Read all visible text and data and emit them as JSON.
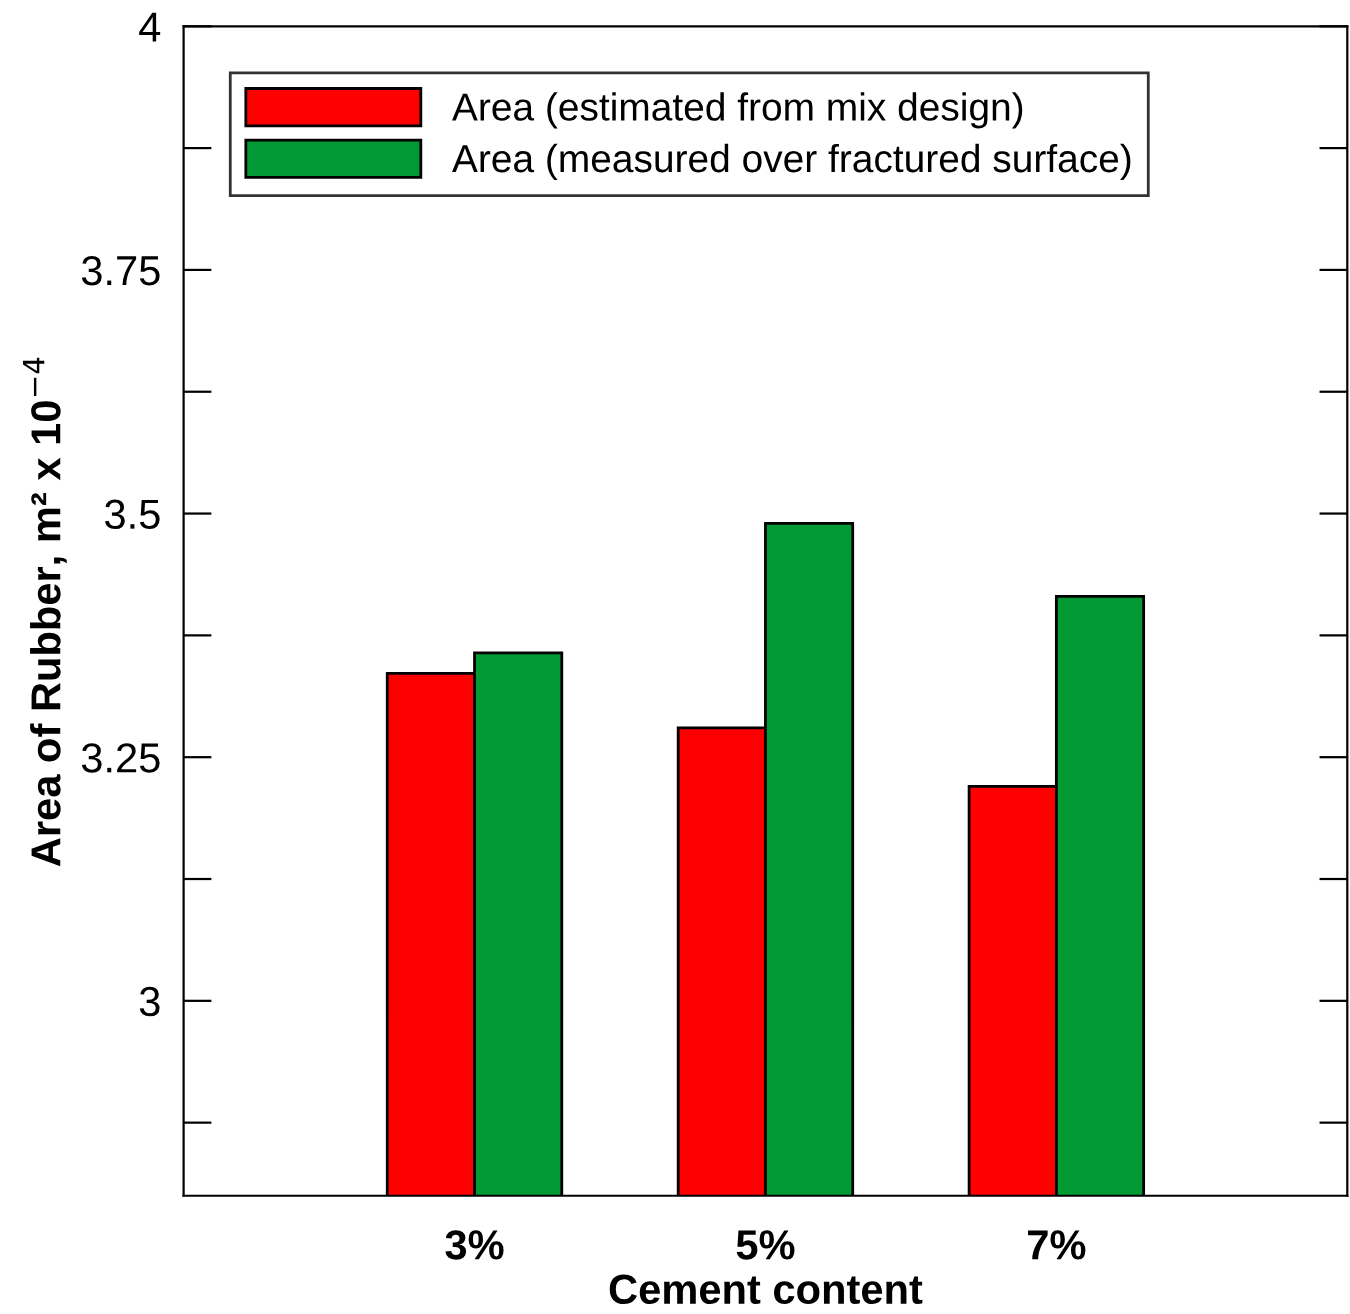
{
  "chart_data": {
    "type": "bar",
    "xlabel": "Cement content",
    "ylabel": "Area of Rubber, m² x 10$^{−4}$",
    "categories": [
      "3%",
      "5%",
      "7%"
    ],
    "series": [
      {
        "name": "Area (estimated from mix design)",
        "color": "#ff0000",
        "values": [
          3.336,
          3.28,
          3.22
        ]
      },
      {
        "name": "Area (measured over fractured surface)",
        "color": "#009933",
        "values": [
          3.357,
          3.49,
          3.415
        ]
      }
    ],
    "ylim": [
      2.8,
      4
    ],
    "yticks": [
      {
        "value": 2.875,
        "label": null
      },
      3,
      {
        "value": 3.125,
        "label": null
      },
      3.25,
      {
        "value": 3.375,
        "label": null
      },
      3.5,
      {
        "value": 3.625,
        "label": null
      },
      3.75,
      {
        "value": 3.875,
        "label": null
      },
      4
    ],
    "grid": false,
    "legend": "top left"
  }
}
